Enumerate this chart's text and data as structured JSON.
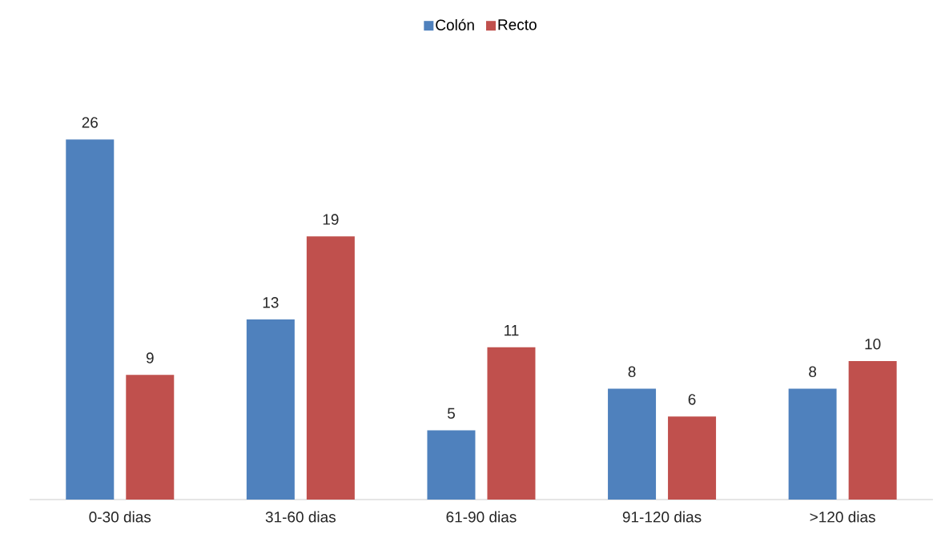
{
  "chart_data": {
    "type": "bar",
    "categories": [
      "0-30 dias",
      "31-60 dias",
      "61-90 dias",
      "91-120 dias",
      ">120 dias"
    ],
    "series": [
      {
        "name": "Colón",
        "color": "#4f81bd",
        "values": [
          26,
          13,
          5,
          8,
          8
        ]
      },
      {
        "name": "Recto",
        "color": "#c0504d",
        "values": [
          9,
          19,
          11,
          6,
          10
        ]
      }
    ],
    "data_labels": true,
    "legend": "top"
  }
}
